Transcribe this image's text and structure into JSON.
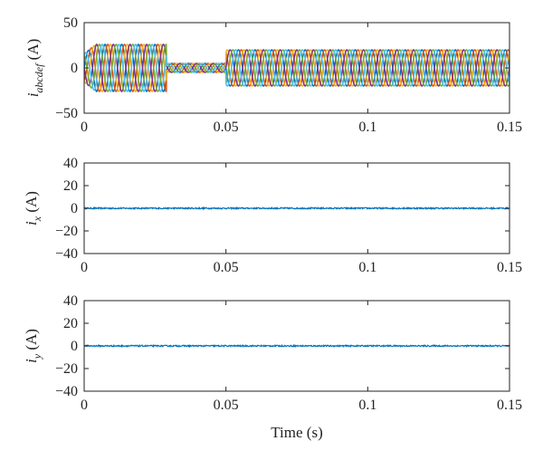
{
  "chart_data": [
    {
      "type": "line",
      "ylabel_main": "i",
      "ylabel_sub": "abcdef",
      "ylabel_unit": " (A)",
      "xlim": [
        0,
        0.15
      ],
      "ylim": [
        -50,
        50
      ],
      "xticks": [
        "0",
        "0.05",
        "0.1",
        "0.15"
      ],
      "yticks": [
        "50",
        "0",
        "−50"
      ],
      "xtick_values": [
        0,
        0.05,
        0.1,
        0.15
      ],
      "ytick_values": [
        50,
        0,
        -50
      ],
      "grid": false,
      "series_colors": [
        "#0072BD",
        "#D95319",
        "#EDB120",
        "#7E2F8E",
        "#77AC30",
        "#4DBEEE"
      ],
      "signal": {
        "frequency_hz": 170,
        "phase_count": 6,
        "segments": [
          {
            "t_start": 0.0,
            "t_end": 0.029,
            "amplitude": 26
          },
          {
            "t_start": 0.029,
            "t_end": 0.05,
            "amplitude": 5
          },
          {
            "t_start": 0.05,
            "t_end": 0.15,
            "amplitude": 20
          }
        ]
      }
    },
    {
      "type": "line",
      "ylabel_main": "i",
      "ylabel_sub": "x",
      "ylabel_unit": " (A)",
      "xlim": [
        0,
        0.15
      ],
      "ylim": [
        -40,
        40
      ],
      "xticks": [
        "0",
        "0.05",
        "0.1",
        "0.15"
      ],
      "yticks": [
        "40",
        "20",
        "0",
        "−20",
        "−40"
      ],
      "xtick_values": [
        0,
        0.05,
        0.1,
        0.15
      ],
      "ytick_values": [
        40,
        20,
        0,
        -20,
        -40
      ],
      "grid": false,
      "series_colors": [
        "#0072BD"
      ],
      "signal": {
        "mean": 0,
        "noise_amplitude": 0.6
      }
    },
    {
      "type": "line",
      "ylabel_main": "i",
      "ylabel_sub": "y",
      "ylabel_unit": " (A)",
      "xlim": [
        0,
        0.15
      ],
      "ylim": [
        -40,
        40
      ],
      "xticks": [
        "0",
        "0.05",
        "0.1",
        "0.15"
      ],
      "yticks": [
        "40",
        "20",
        "0",
        "−20",
        "−40"
      ],
      "xtick_values": [
        0,
        0.05,
        0.1,
        0.15
      ],
      "ytick_values": [
        40,
        20,
        0,
        -20,
        -40
      ],
      "grid": false,
      "series_colors": [
        "#0072BD"
      ],
      "signal": {
        "mean": 0,
        "noise_amplitude": 0.6
      },
      "xlabel": "Time (s)"
    }
  ]
}
